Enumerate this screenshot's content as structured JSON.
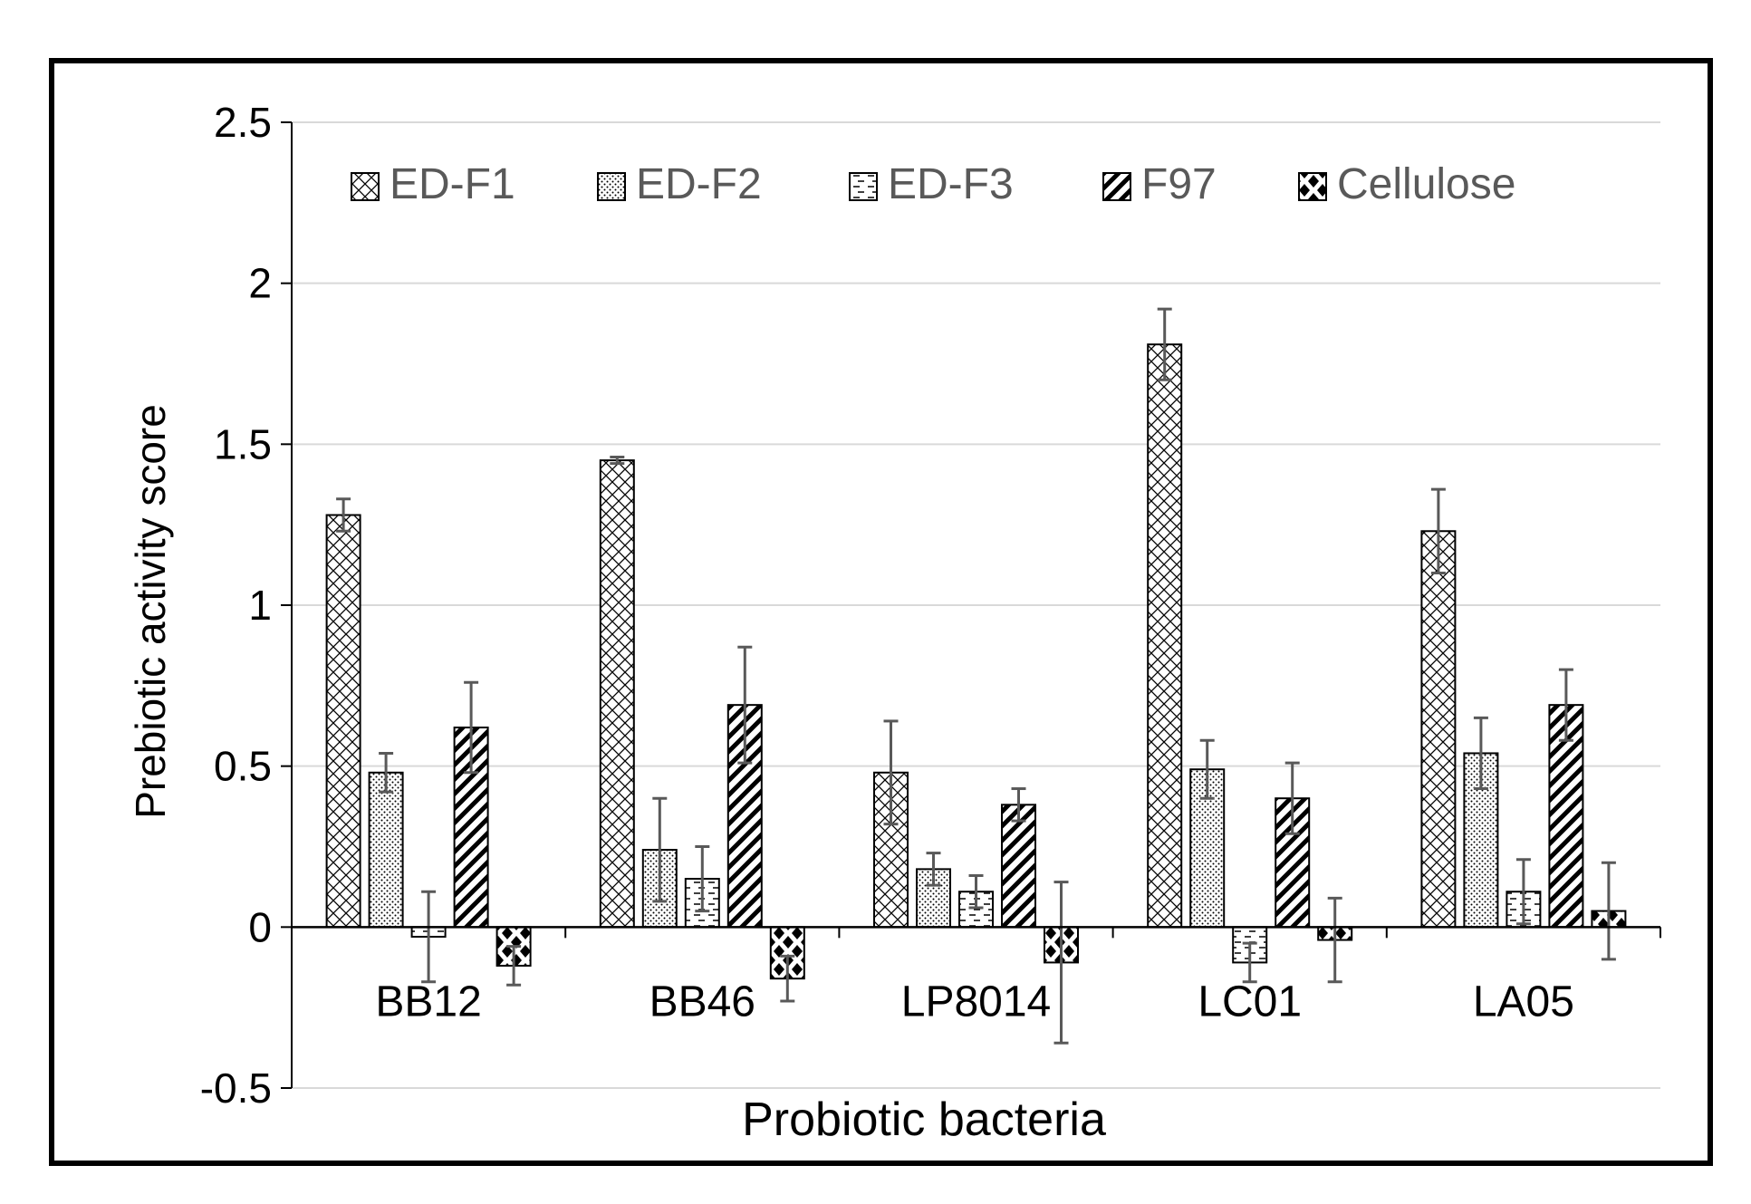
{
  "chart_data": {
    "type": "bar",
    "title": "",
    "xlabel": "Probiotic bacteria",
    "ylabel": "Prebiotic activity score",
    "ylim": [
      -0.5,
      2.5
    ],
    "yticks": [
      -0.5,
      0,
      0.5,
      1,
      1.5,
      2,
      2.5
    ],
    "ytick_labels": [
      "-0.5",
      "0",
      "0.5",
      "1",
      "1.5",
      "2",
      "2.5"
    ],
    "grid": true,
    "legend_position": "top",
    "categories": [
      "BB12",
      "BB46",
      "LP8014",
      "LC01",
      "LA05"
    ],
    "series": [
      {
        "name": "ED-F1",
        "pattern": "crosshatch",
        "values": [
          1.28,
          1.45,
          0.48,
          1.81,
          1.23
        ],
        "errors": [
          0.05,
          0.01,
          0.16,
          0.11,
          0.13
        ]
      },
      {
        "name": "ED-F2",
        "pattern": "dots",
        "values": [
          0.48,
          0.24,
          0.18,
          0.49,
          0.54
        ],
        "errors": [
          0.06,
          0.16,
          0.05,
          0.09,
          0.11
        ]
      },
      {
        "name": "ED-F3",
        "pattern": "dashes",
        "values": [
          -0.03,
          0.15,
          0.11,
          -0.11,
          0.11
        ],
        "errors": [
          0.14,
          0.1,
          0.05,
          0.06,
          0.1
        ]
      },
      {
        "name": "F97",
        "pattern": "diagonal",
        "values": [
          0.62,
          0.69,
          0.38,
          0.4,
          0.69
        ],
        "errors": [
          0.14,
          0.18,
          0.05,
          0.11,
          0.11
        ]
      },
      {
        "name": "Cellulose",
        "pattern": "diamonds",
        "values": [
          -0.12,
          -0.16,
          -0.11,
          -0.04,
          0.05
        ],
        "errors": [
          0.06,
          0.07,
          0.25,
          0.13,
          0.15
        ]
      }
    ],
    "colors": {
      "axis": "#000000",
      "grid": "#d9d9d9",
      "error_bar": "#595959",
      "legend_text": "#595959",
      "bar_stroke": "#000000"
    }
  }
}
